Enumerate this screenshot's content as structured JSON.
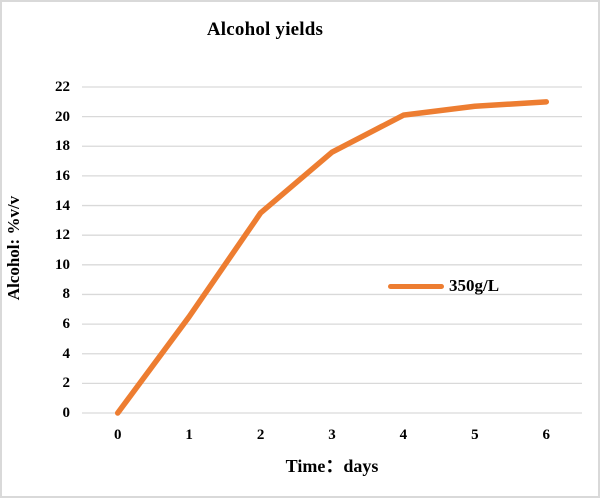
{
  "chart_data": {
    "type": "line",
    "title": "Alcohol yields",
    "xlabel": "Time：days",
    "ylabel": "Alcohol: %v/v",
    "categories": [
      "0",
      "1",
      "2",
      "3",
      "4",
      "5",
      "6"
    ],
    "series": [
      {
        "name": "350g/L",
        "color": "#ED7D31",
        "values": [
          0,
          6.5,
          13.5,
          17.6,
          20.1,
          20.7,
          21
        ]
      }
    ],
    "ylim": [
      0,
      22
    ],
    "ytick_step": 2,
    "grid": true,
    "gridline_color": "#d9d9d9",
    "legend_position": "center-right"
  },
  "colors": {
    "background": "#ffffff",
    "border": "#d9d9d9",
    "text": "#000000",
    "accent": "#ED7D31"
  }
}
